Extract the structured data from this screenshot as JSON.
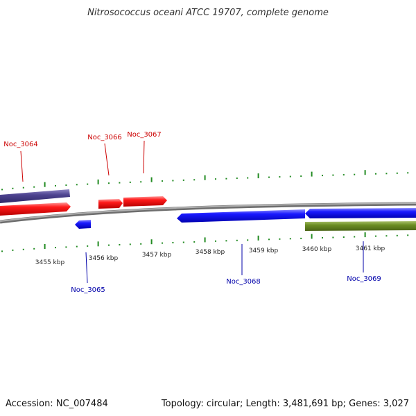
{
  "title": "Nitrosococcus oceani ATCC 19707, complete genome",
  "footer": {
    "accession": "Accession: NC_007484",
    "topology": "Topology: circular; Length: 3,481,691 bp; Genes: 3,027"
  },
  "colors": {
    "forward_gene": "#ff0000",
    "reverse_gene": "#0000ff",
    "forward_label": "#cc0000",
    "reverse_label": "#0000aa",
    "forward_feature": "#4a3f86",
    "reverse_feature": "#6b8e23",
    "backbone": "#888888",
    "tick": "#228b22"
  },
  "kbp_labels": [
    "3455 kbp",
    "3456 kbp",
    "3457 kbp",
    "3458 kbp",
    "3459 kbp",
    "3460 kbp",
    "3461 kbp"
  ],
  "gene_labels": {
    "noc_3064": "Noc_3064",
    "noc_3065": "Noc_3065",
    "noc_3066": "Noc_3066",
    "noc_3067": "Noc_3067",
    "noc_3068": "Noc_3068",
    "noc_3069": "Noc_3069"
  },
  "genes": [
    {
      "name": "Noc_3064",
      "strand": "+"
    },
    {
      "name": "Noc_3065",
      "strand": "-"
    },
    {
      "name": "Noc_3066",
      "strand": "+"
    },
    {
      "name": "Noc_3067",
      "strand": "+"
    },
    {
      "name": "Noc_3068",
      "strand": "-"
    },
    {
      "name": "Noc_3069",
      "strand": "-"
    }
  ]
}
